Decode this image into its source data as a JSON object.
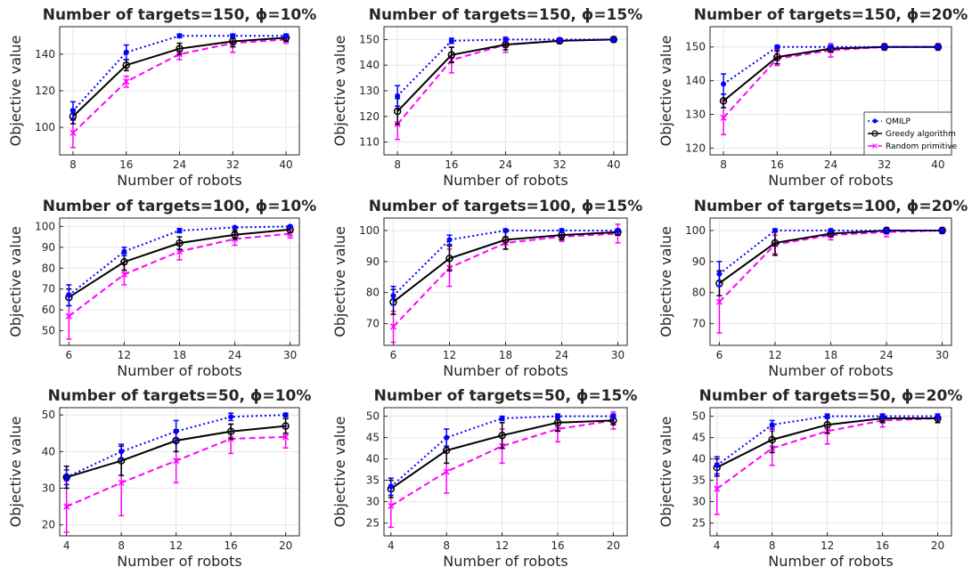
{
  "legend": {
    "entries": [
      {
        "label": "QMILP",
        "color": "#0000ff",
        "dash": "2,3",
        "marker": "dot"
      },
      {
        "label": "Greedy algorithm",
        "color": "#000000",
        "dash": "",
        "marker": "circle"
      },
      {
        "label": "Random primitive",
        "color": "#ff00ff",
        "dash": "7,4",
        "marker": "x"
      }
    ],
    "placement": "lower-right of top-right panel"
  },
  "chart_data": [
    {
      "type": "line",
      "title": "Number of targets=150, ϕ=10%",
      "xlabel": "Number of robots",
      "ylabel": "Objective value",
      "x": [
        8,
        16,
        24,
        32,
        40
      ],
      "xlim": [
        6,
        42
      ],
      "ylim": [
        85,
        155
      ],
      "yticks": [
        100,
        120,
        140
      ],
      "series": [
        {
          "name": "QMILP",
          "values": [
            109,
            141,
            150,
            150,
            150
          ],
          "err": [
            5,
            4,
            1,
            1,
            1
          ]
        },
        {
          "name": "Greedy algorithm",
          "values": [
            106,
            134,
            143,
            147,
            149
          ],
          "err": [
            4,
            3,
            3,
            3,
            2
          ]
        },
        {
          "name": "Random primitive",
          "values": [
            97,
            125,
            140,
            146,
            148
          ],
          "err": [
            8,
            3,
            3,
            5,
            2
          ]
        }
      ]
    },
    {
      "type": "line",
      "title": "Number of targets=150, ϕ=15%",
      "xlabel": "Number of robots",
      "ylabel": "Objective value",
      "x": [
        8,
        16,
        24,
        32,
        40
      ],
      "xlim": [
        6,
        42
      ],
      "ylim": [
        105,
        155
      ],
      "yticks": [
        110,
        120,
        130,
        140,
        150
      ],
      "series": [
        {
          "name": "QMILP",
          "values": [
            128,
            149.5,
            150,
            150,
            150
          ],
          "err": [
            4,
            1,
            0.5,
            0.5,
            0.5
          ]
        },
        {
          "name": "Greedy algorithm",
          "values": [
            122,
            144,
            148,
            149.5,
            150
          ],
          "err": [
            5,
            3,
            2,
            1,
            1
          ]
        },
        {
          "name": "Random primitive",
          "values": [
            117,
            142,
            148,
            149.5,
            150
          ],
          "err": [
            6,
            5,
            3,
            1,
            1
          ]
        }
      ]
    },
    {
      "type": "line",
      "title": "Number of targets=150, ϕ=20%",
      "xlabel": "Number of robots",
      "ylabel": "Objective value",
      "x": [
        8,
        16,
        24,
        32,
        40
      ],
      "xlim": [
        6,
        42
      ],
      "ylim": [
        118,
        156
      ],
      "yticks": [
        120,
        130,
        140,
        150
      ],
      "series": [
        {
          "name": "QMILP",
          "values": [
            139,
            150,
            150,
            150,
            150
          ],
          "err": [
            3,
            0.5,
            0.5,
            0.5,
            0.5
          ]
        },
        {
          "name": "Greedy algorithm",
          "values": [
            134,
            147,
            149.5,
            150,
            150
          ],
          "err": [
            2,
            2,
            1,
            0.5,
            0.5
          ]
        },
        {
          "name": "Random primitive",
          "values": [
            129,
            146.5,
            149,
            150,
            150
          ],
          "err": [
            5,
            2,
            2,
            1,
            1
          ]
        }
      ]
    },
    {
      "type": "line",
      "title": "Number of targets=100, ϕ=10%",
      "xlabel": "Number of robots",
      "ylabel": "Objective value",
      "x": [
        6,
        12,
        18,
        24,
        30
      ],
      "xlim": [
        5,
        31
      ],
      "ylim": [
        43,
        104
      ],
      "yticks": [
        50,
        60,
        70,
        80,
        90,
        100
      ],
      "series": [
        {
          "name": "QMILP",
          "values": [
            67,
            88,
            98,
            99.5,
            100
          ],
          "err": [
            5,
            2,
            1,
            0.5,
            0.5
          ]
        },
        {
          "name": "Greedy algorithm",
          "values": [
            66,
            83,
            92,
            96,
            98.5
          ],
          "err": [
            4,
            4,
            3,
            2,
            1.5
          ]
        },
        {
          "name": "Random primitive",
          "values": [
            57,
            77,
            88,
            94,
            96.5
          ],
          "err": [
            11,
            5,
            4,
            3,
            2
          ]
        }
      ]
    },
    {
      "type": "line",
      "title": "Number of targets=100, ϕ=15%",
      "xlabel": "Number of robots",
      "ylabel": "Objective value",
      "x": [
        6,
        12,
        18,
        24,
        30
      ],
      "xlim": [
        5,
        31
      ],
      "ylim": [
        63,
        104
      ],
      "yticks": [
        70,
        80,
        90,
        100
      ],
      "series": [
        {
          "name": "QMILP",
          "values": [
            79,
            97,
            100,
            100,
            100
          ],
          "err": [
            3,
            1.5,
            0.5,
            0.5,
            0.5
          ]
        },
        {
          "name": "Greedy algorithm",
          "values": [
            77,
            91,
            97,
            98.5,
            99.5
          ],
          "err": [
            4,
            4,
            3,
            1.5,
            1
          ]
        },
        {
          "name": "Random primitive",
          "values": [
            69,
            88,
            96,
            98,
            99
          ],
          "err": [
            5,
            6,
            2,
            1.5,
            3
          ]
        }
      ]
    },
    {
      "type": "line",
      "title": "Number of targets=100, ϕ=20%",
      "xlabel": "Number of robots",
      "ylabel": "Objective value",
      "x": [
        6,
        12,
        18,
        24,
        30
      ],
      "xlim": [
        5,
        31
      ],
      "ylim": [
        63,
        104
      ],
      "yticks": [
        70,
        80,
        90,
        100
      ],
      "series": [
        {
          "name": "QMILP",
          "values": [
            86,
            100,
            100,
            100,
            100
          ],
          "err": [
            4,
            0.5,
            0.5,
            0.5,
            0.5
          ]
        },
        {
          "name": "Greedy algorithm",
          "values": [
            83,
            96,
            99,
            100,
            100
          ],
          "err": [
            4,
            4,
            1,
            0.5,
            0.5
          ]
        },
        {
          "name": "Random primitive",
          "values": [
            77,
            95.5,
            98.5,
            99.5,
            100
          ],
          "err": [
            10,
            3,
            1.5,
            1.5,
            1
          ]
        }
      ]
    },
    {
      "type": "line",
      "title": "Number of targets=50, ϕ=10%",
      "xlabel": "Number of robots",
      "ylabel": "Objective value",
      "x": [
        4,
        8,
        12,
        16,
        20
      ],
      "xlim": [
        3.5,
        21
      ],
      "ylim": [
        17,
        52
      ],
      "yticks": [
        20,
        30,
        40,
        50
      ],
      "series": [
        {
          "name": "QMILP",
          "values": [
            33,
            40,
            45.5,
            49.5,
            50
          ],
          "err": [
            2,
            2,
            3,
            1,
            0.5
          ]
        },
        {
          "name": "Greedy algorithm",
          "values": [
            33,
            37.5,
            43,
            45.5,
            47
          ],
          "err": [
            3,
            4,
            3,
            2,
            2
          ]
        },
        {
          "name": "Random primitive",
          "values": [
            25,
            31.5,
            37.5,
            43.5,
            44
          ],
          "err": [
            7,
            9,
            6,
            4,
            3
          ]
        }
      ]
    },
    {
      "type": "line",
      "title": "Number of targets=50, ϕ=15%",
      "xlabel": "Number of robots",
      "ylabel": "Objective value",
      "x": [
        4,
        8,
        12,
        16,
        20
      ],
      "xlim": [
        3.5,
        21
      ],
      "ylim": [
        22,
        52
      ],
      "yticks": [
        25,
        30,
        35,
        40,
        45,
        50
      ],
      "series": [
        {
          "name": "QMILP",
          "values": [
            33.5,
            45,
            49.5,
            50,
            50
          ],
          "err": [
            2,
            2,
            0.5,
            0.5,
            0.5
          ]
        },
        {
          "name": "Greedy algorithm",
          "values": [
            33,
            42,
            45.5,
            48.5,
            49
          ],
          "err": [
            2,
            3,
            3,
            2,
            1
          ]
        },
        {
          "name": "Random primitive",
          "values": [
            29,
            37,
            43,
            47,
            49
          ],
          "err": [
            5,
            5,
            4,
            3,
            2
          ]
        }
      ]
    },
    {
      "type": "line",
      "title": "Number of targets=50, ϕ=20%",
      "xlabel": "Number of robots",
      "ylabel": "Objective value",
      "x": [
        4,
        8,
        12,
        16,
        20
      ],
      "xlim": [
        3.5,
        21
      ],
      "ylim": [
        22,
        52
      ],
      "yticks": [
        25,
        30,
        35,
        40,
        45,
        50
      ],
      "series": [
        {
          "name": "QMILP",
          "values": [
            38.5,
            48,
            50,
            50,
            50
          ],
          "err": [
            2,
            1,
            0.5,
            0.5,
            0.5
          ]
        },
        {
          "name": "Greedy algorithm",
          "values": [
            38,
            44.5,
            48,
            49.5,
            49.5
          ],
          "err": [
            2,
            3,
            2,
            1,
            1
          ]
        },
        {
          "name": "Random primitive",
          "values": [
            33,
            42.5,
            46.5,
            49,
            49.5
          ],
          "err": [
            6,
            4,
            3,
            1.5,
            1
          ]
        }
      ]
    }
  ]
}
